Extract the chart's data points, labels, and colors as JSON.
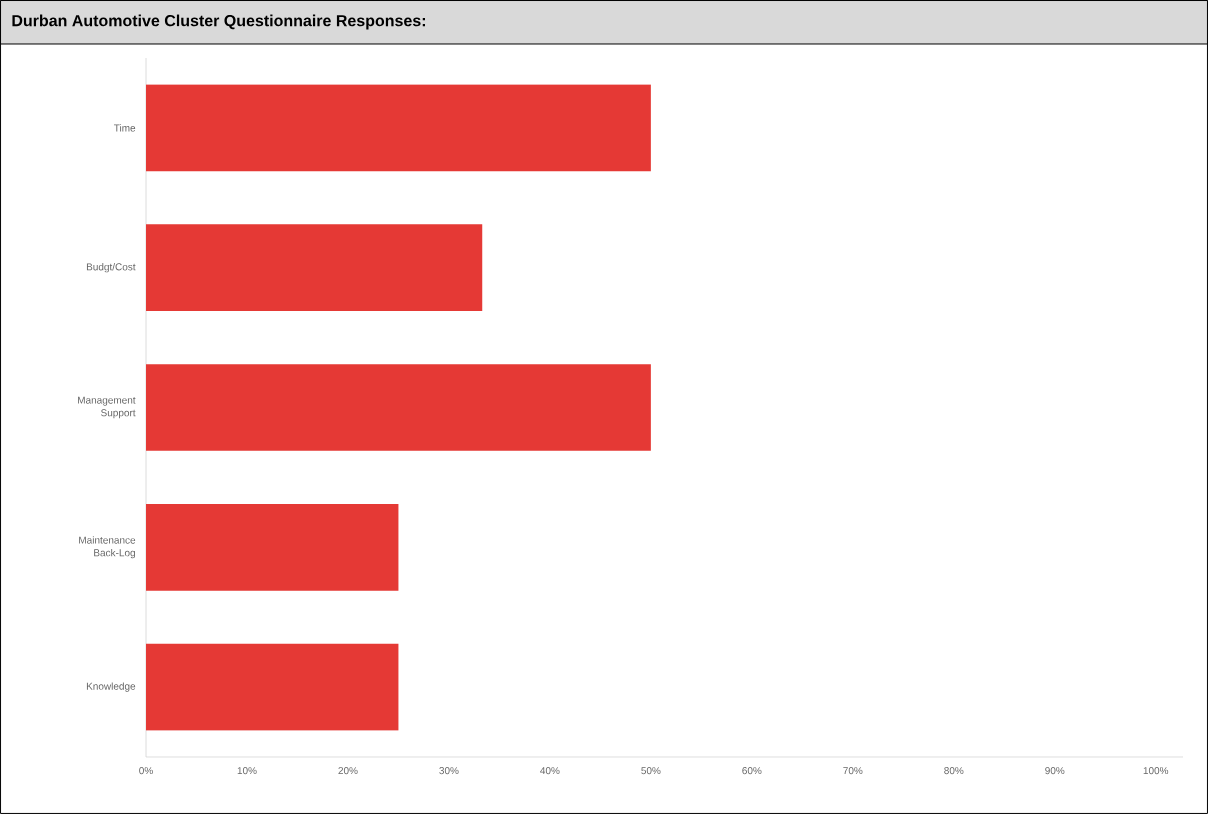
{
  "chart_data": {
    "type": "bar",
    "orientation": "horizontal",
    "title": "Durban Automotive Cluster Questionnaire Responses:",
    "categories": [
      "Time",
      "Budgt/Cost",
      "Management Support",
      "Maintenance Back-Log",
      "Knowledge"
    ],
    "values": [
      50,
      33.3,
      50,
      25,
      25
    ],
    "color": "#e53935",
    "xlim": [
      0,
      102.7
    ],
    "xticks": [
      {
        "value": 0,
        "label": "0%"
      },
      {
        "value": 10,
        "label": "10%"
      },
      {
        "value": 20,
        "label": "20%"
      },
      {
        "value": 30,
        "label": "30%"
      },
      {
        "value": 40,
        "label": "40%"
      },
      {
        "value": 50,
        "label": "50%"
      },
      {
        "value": 60,
        "label": "60%"
      },
      {
        "value": 70,
        "label": "70%"
      },
      {
        "value": 80,
        "label": "80%"
      },
      {
        "value": 90,
        "label": "90%"
      },
      {
        "value": 100,
        "label": "100%"
      }
    ]
  }
}
